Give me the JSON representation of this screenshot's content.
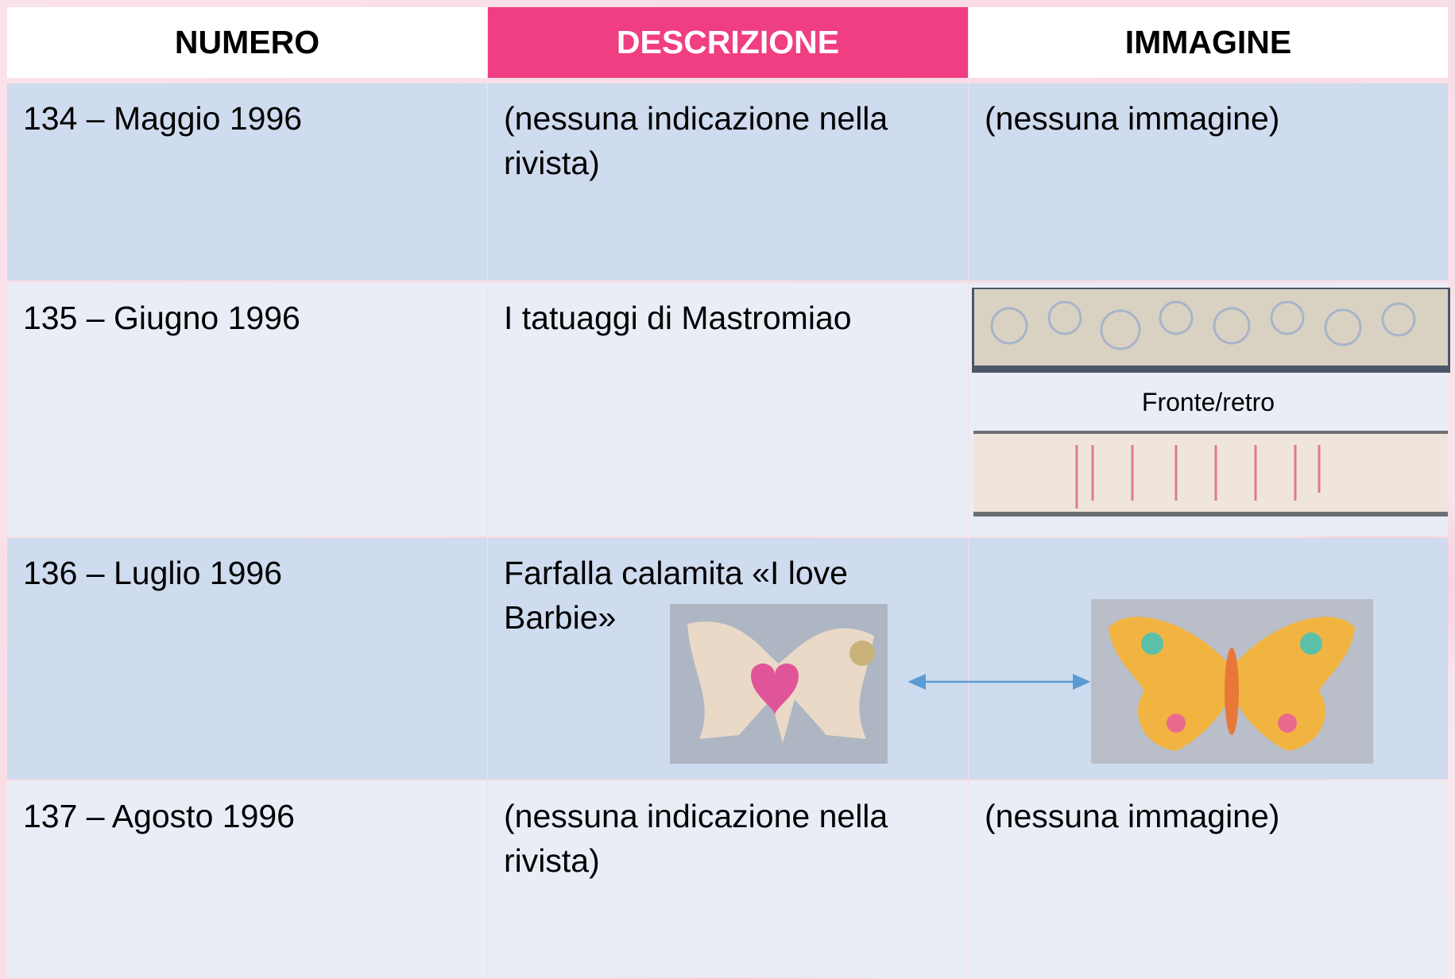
{
  "table": {
    "header": [
      "NUMERO",
      "DESCRIZIONE",
      "IMMAGINE"
    ],
    "rows": [
      {
        "numero": "134 – Maggio 1996",
        "descrizione": "(nessuna indicazione nella rivista)",
        "immagine": "(nessuna immagine)"
      },
      {
        "numero": "135 – Giugno 1996",
        "descrizione": "I tatuaggi di Mastromiao",
        "caption": "Fronte/retro"
      },
      {
        "numero": "136 – Luglio 1996",
        "descrizione": "Farfalla calamita «I love Barbie»"
      },
      {
        "numero": "137 – Agosto 1996",
        "descrizione": "(nessuna indicazione nella rivista)",
        "immagine": "(nessuna immagine)"
      }
    ]
  }
}
